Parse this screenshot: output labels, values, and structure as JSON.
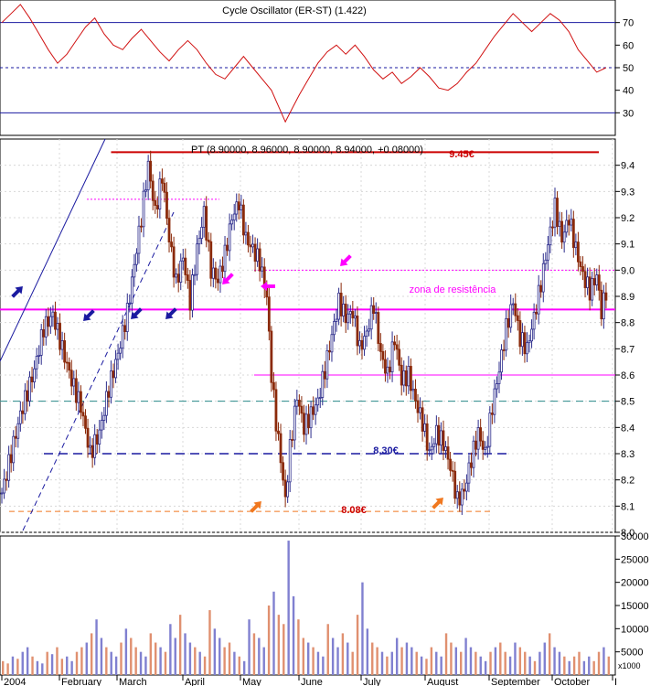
{
  "osc_title": "Cycle Oscillator (ER-ST) (1.422)",
  "price_title": "PT (8.90000, 8.96000, 8.90000, 8.94000, +0.08000)",
  "annotations": {
    "high_label": "9.45€",
    "support_label": "8,30€",
    "low_label": "8.08€",
    "resistance_label": "zona de resistência"
  },
  "volume_unit": "x1000",
  "colors": {
    "up": "#2c2c8c",
    "down": "#8b2a0a",
    "osc": "#d01010",
    "blue_line": "#1a1aa0",
    "red_line": "#cc0000",
    "magenta": "#ff00ff",
    "orange": "#f07820",
    "teal": "#2a8a8a",
    "vol_up": "#8080d0",
    "vol_down": "#e09070"
  },
  "chart_data": {
    "type": "candlestick",
    "period": "2004",
    "months": [
      "2004",
      "February",
      "March",
      "April",
      "May",
      "June",
      "July",
      "August",
      "September",
      "October",
      "I"
    ],
    "price_axis": {
      "min": 8.0,
      "max": 9.5,
      "ticks": [
        8.0,
        8.1,
        8.2,
        8.3,
        8.4,
        8.5,
        8.6,
        8.7,
        8.8,
        8.9,
        9.0,
        9.1,
        9.2,
        9.3,
        9.4
      ]
    },
    "oscillator_axis": {
      "min": 20,
      "max": 80,
      "ticks": [
        30,
        40,
        50,
        60,
        70
      ]
    },
    "oscillator_levels": [
      70,
      50,
      30
    ],
    "volume_axis": {
      "min": 0,
      "max": 30000,
      "ticks": [
        5000,
        10000,
        15000,
        20000,
        25000,
        30000
      ]
    },
    "levels": {
      "resistance_high": 9.45,
      "resistance_zone": 8.85,
      "upper_dotted": 9.0,
      "lower_line": 8.6,
      "teal_dashed": 8.5,
      "support": 8.3,
      "low": 8.08,
      "pink_dotted": 9.27
    },
    "price_path": [
      [
        0,
        8.15
      ],
      [
        8,
        8.45
      ],
      [
        14,
        8.62
      ],
      [
        18,
        8.78
      ],
      [
        22,
        8.83
      ],
      [
        26,
        8.7
      ],
      [
        30,
        8.58
      ],
      [
        34,
        8.48
      ],
      [
        38,
        8.3
      ],
      [
        42,
        8.38
      ],
      [
        46,
        8.55
      ],
      [
        50,
        8.68
      ],
      [
        54,
        8.84
      ],
      [
        57,
        9.02
      ],
      [
        60,
        9.2
      ],
      [
        63,
        9.4
      ],
      [
        66,
        9.22
      ],
      [
        69,
        9.36
      ],
      [
        72,
        9.12
      ],
      [
        75,
        8.95
      ],
      [
        78,
        9.05
      ],
      [
        81,
        8.88
      ],
      [
        84,
        9.08
      ],
      [
        87,
        9.22
      ],
      [
        90,
        9.0
      ],
      [
        93,
        8.96
      ],
      [
        96,
        9.06
      ],
      [
        99,
        9.2
      ],
      [
        102,
        9.26
      ],
      [
        105,
        9.12
      ],
      [
        108,
        9.08
      ],
      [
        111,
        9.03
      ],
      [
        114,
        8.9
      ],
      [
        116,
        8.6
      ],
      [
        118,
        8.42
      ],
      [
        120,
        8.28
      ],
      [
        122,
        8.12
      ],
      [
        124,
        8.32
      ],
      [
        127,
        8.52
      ],
      [
        130,
        8.4
      ],
      [
        133,
        8.45
      ],
      [
        136,
        8.5
      ],
      [
        139,
        8.62
      ],
      [
        142,
        8.75
      ],
      [
        145,
        8.88
      ],
      [
        148,
        8.82
      ],
      [
        151,
        8.84
      ],
      [
        154,
        8.7
      ],
      [
        157,
        8.76
      ],
      [
        160,
        8.87
      ],
      [
        163,
        8.68
      ],
      [
        166,
        8.6
      ],
      [
        169,
        8.74
      ],
      [
        172,
        8.58
      ],
      [
        175,
        8.6
      ],
      [
        178,
        8.5
      ],
      [
        181,
        8.42
      ],
      [
        184,
        8.3
      ],
      [
        187,
        8.38
      ],
      [
        190,
        8.34
      ],
      [
        193,
        8.25
      ],
      [
        196,
        8.12
      ],
      [
        199,
        8.16
      ],
      [
        202,
        8.28
      ],
      [
        205,
        8.38
      ],
      [
        208,
        8.3
      ],
      [
        211,
        8.48
      ],
      [
        214,
        8.62
      ],
      [
        217,
        8.78
      ],
      [
        220,
        8.88
      ],
      [
        223,
        8.74
      ],
      [
        226,
        8.7
      ],
      [
        229,
        8.82
      ],
      [
        232,
        8.95
      ],
      [
        235,
        9.1
      ],
      [
        238,
        9.24
      ],
      [
        241,
        9.12
      ],
      [
        244,
        9.2
      ],
      [
        247,
        9.08
      ],
      [
        250,
        8.98
      ],
      [
        253,
        8.92
      ],
      [
        256,
        8.98
      ],
      [
        258,
        8.84
      ],
      [
        260,
        8.92
      ]
    ],
    "oscillator_path": [
      [
        0,
        70
      ],
      [
        4,
        74
      ],
      [
        8,
        78
      ],
      [
        12,
        72
      ],
      [
        16,
        65
      ],
      [
        20,
        58
      ],
      [
        24,
        52
      ],
      [
        28,
        56
      ],
      [
        32,
        62
      ],
      [
        36,
        68
      ],
      [
        40,
        72
      ],
      [
        44,
        65
      ],
      [
        48,
        60
      ],
      [
        52,
        58
      ],
      [
        56,
        63
      ],
      [
        60,
        67
      ],
      [
        64,
        62
      ],
      [
        68,
        57
      ],
      [
        72,
        53
      ],
      [
        76,
        58
      ],
      [
        80,
        62
      ],
      [
        84,
        58
      ],
      [
        88,
        52
      ],
      [
        92,
        47
      ],
      [
        96,
        45
      ],
      [
        100,
        50
      ],
      [
        104,
        55
      ],
      [
        108,
        50
      ],
      [
        112,
        45
      ],
      [
        116,
        40
      ],
      [
        119,
        33
      ],
      [
        122,
        26
      ],
      [
        125,
        32
      ],
      [
        128,
        38
      ],
      [
        132,
        45
      ],
      [
        136,
        52
      ],
      [
        140,
        57
      ],
      [
        144,
        60
      ],
      [
        148,
        56
      ],
      [
        152,
        60
      ],
      [
        156,
        55
      ],
      [
        160,
        49
      ],
      [
        164,
        45
      ],
      [
        168,
        48
      ],
      [
        172,
        43
      ],
      [
        176,
        46
      ],
      [
        180,
        50
      ],
      [
        184,
        46
      ],
      [
        188,
        41
      ],
      [
        192,
        40
      ],
      [
        196,
        43
      ],
      [
        200,
        48
      ],
      [
        204,
        52
      ],
      [
        208,
        58
      ],
      [
        212,
        64
      ],
      [
        216,
        69
      ],
      [
        220,
        74
      ],
      [
        224,
        70
      ],
      [
        228,
        66
      ],
      [
        232,
        70
      ],
      [
        236,
        74
      ],
      [
        240,
        71
      ],
      [
        244,
        66
      ],
      [
        248,
        58
      ],
      [
        252,
        53
      ],
      [
        256,
        48
      ],
      [
        260,
        50
      ]
    ],
    "volume_values": [
      3,
      2.5,
      4,
      3.5,
      5,
      6,
      4,
      3,
      2.5,
      5,
      4.5,
      6,
      3.5,
      4,
      3,
      5,
      6,
      7,
      9,
      12,
      8,
      6,
      5,
      4,
      7,
      10,
      8,
      6,
      5,
      4,
      9,
      7,
      6,
      5,
      11,
      8,
      13,
      9,
      7,
      6,
      5,
      4,
      14,
      10,
      8,
      6,
      7,
      5,
      4,
      3,
      12,
      9,
      8,
      6,
      15,
      18,
      13,
      11,
      29,
      17,
      12,
      8,
      7,
      6,
      5,
      4,
      11,
      8,
      6,
      9,
      7,
      5,
      13,
      20,
      10,
      7,
      6,
      5,
      4,
      5,
      8,
      6,
      7,
      6,
      5,
      4,
      3.5,
      6,
      5,
      4,
      9,
      7,
      6,
      5,
      8,
      6,
      5,
      4,
      3,
      5,
      6,
      7,
      5,
      4,
      7,
      6,
      5,
      4,
      3,
      5,
      7,
      9,
      6,
      5,
      4,
      3,
      4,
      5,
      3,
      4,
      3,
      5,
      6,
      4
    ]
  }
}
